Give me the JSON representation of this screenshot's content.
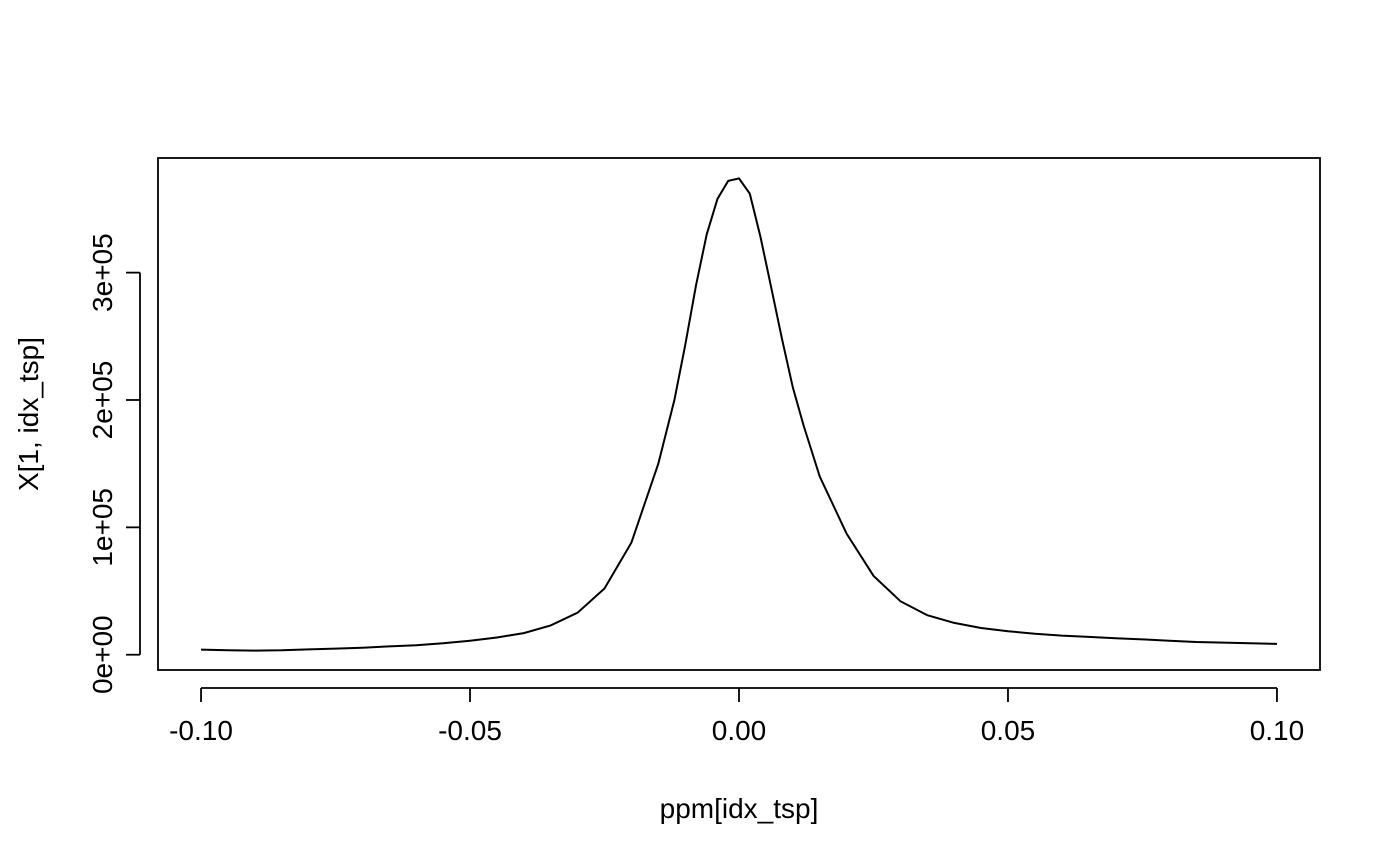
{
  "chart_data": {
    "type": "line",
    "title": "",
    "xlabel": "ppm[idx_tsp]",
    "ylabel": "X[1, idx_tsp]",
    "xlim": [
      -0.108,
      0.108
    ],
    "ylim": [
      -12000,
      390000
    ],
    "xticks": [
      -0.1,
      -0.05,
      0.0,
      0.05,
      0.1
    ],
    "xtick_labels": [
      "-0.10",
      "-0.05",
      "0.00",
      "0.05",
      "0.10"
    ],
    "yticks": [
      0,
      100000,
      200000,
      300000
    ],
    "ytick_labels": [
      "0e+00",
      "1e+05",
      "2e+05",
      "3e+05"
    ],
    "grid": false,
    "legend": "none",
    "series": [
      {
        "color": "#000000",
        "x": [
          -0.1,
          -0.095,
          -0.09,
          -0.085,
          -0.08,
          -0.075,
          -0.07,
          -0.065,
          -0.06,
          -0.055,
          -0.05,
          -0.045,
          -0.04,
          -0.035,
          -0.03,
          -0.025,
          -0.02,
          -0.015,
          -0.012,
          -0.01,
          -0.008,
          -0.006,
          -0.004,
          -0.002,
          0.0,
          0.002,
          0.004,
          0.006,
          0.008,
          0.01,
          0.012,
          0.015,
          0.02,
          0.025,
          0.03,
          0.035,
          0.04,
          0.045,
          0.05,
          0.055,
          0.06,
          0.065,
          0.07,
          0.075,
          0.08,
          0.085,
          0.09,
          0.095,
          0.1
        ],
        "y": [
          4000,
          3500,
          3200,
          3500,
          4200,
          4800,
          5500,
          6500,
          7500,
          9000,
          11000,
          13500,
          17000,
          23000,
          33000,
          52000,
          88000,
          150000,
          200000,
          243000,
          290000,
          330000,
          358000,
          372000,
          374000,
          362000,
          328000,
          288000,
          248000,
          210000,
          180000,
          140000,
          95000,
          62000,
          42000,
          31000,
          25000,
          21000,
          18500,
          16500,
          15000,
          14000,
          13000,
          12000,
          11000,
          10000,
          9500,
          9000,
          8500
        ]
      }
    ]
  }
}
